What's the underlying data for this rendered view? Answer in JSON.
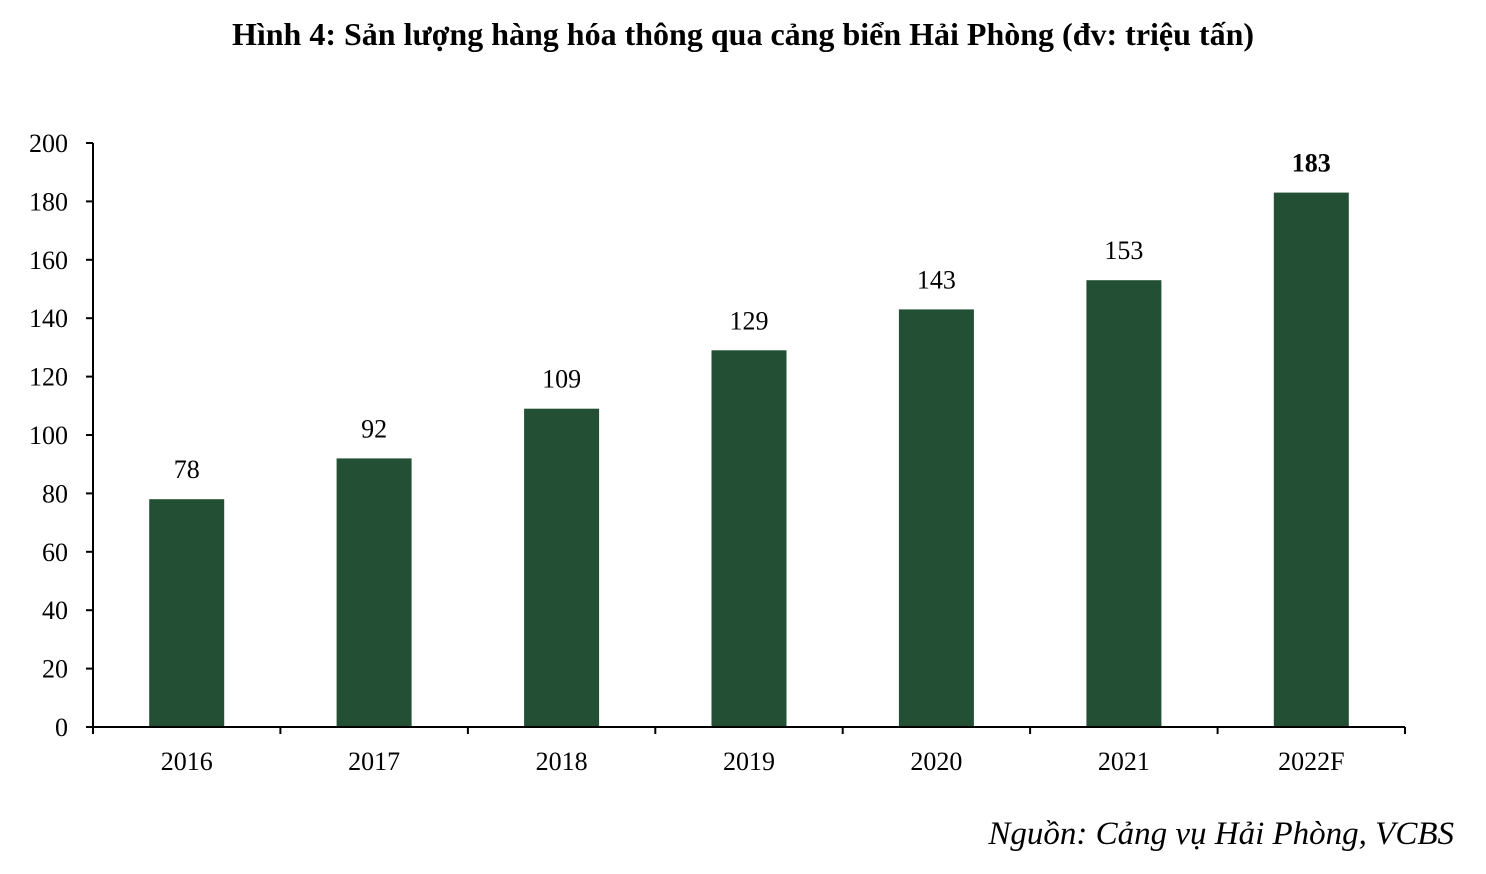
{
  "chart_data": {
    "type": "bar",
    "title": "Hình 4: Sản lượng hàng hóa thông qua cảng biển Hải Phòng (đv: triệu tấn)",
    "source": "Nguồn: Cảng vụ Hải Phòng, VCBS",
    "categories": [
      "2016",
      "2017",
      "2018",
      "2019",
      "2020",
      "2021",
      "2022F"
    ],
    "values": [
      78,
      92,
      109,
      129,
      143,
      153,
      183
    ],
    "value_labels": [
      "78",
      "92",
      "109",
      "129",
      "143",
      "153",
      "183"
    ],
    "emphasized_index": 6,
    "ylim": [
      0,
      200
    ],
    "yticks": [
      0,
      20,
      40,
      60,
      80,
      100,
      120,
      140,
      160,
      180,
      200
    ],
    "ytick_labels": [
      "0",
      "20",
      "40",
      "60",
      "80",
      "100",
      "120",
      "140",
      "160",
      "180",
      "200"
    ],
    "grid": false,
    "legend": "none",
    "bar_color": "#234f34",
    "axis_color": "#000000"
  }
}
